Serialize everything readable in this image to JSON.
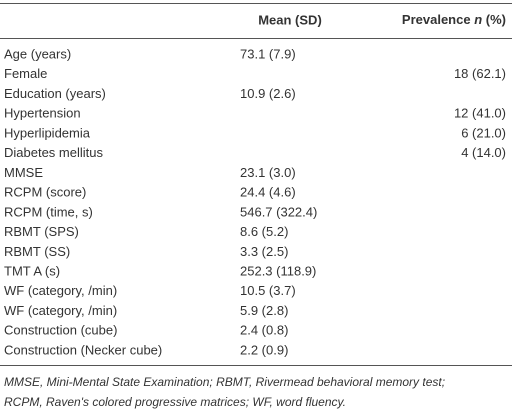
{
  "table": {
    "header": {
      "mean": "Mean (SD)",
      "prevalence": [
        "Prevalence",
        "n",
        "(%)"
      ]
    },
    "rows": [
      {
        "label": "Age (years)",
        "mean": "73.1 (7.9)"
      },
      {
        "label": "Female",
        "prevalence": "18 (62.1)"
      },
      {
        "label": "Education (years)",
        "mean": "10.9 (2.6)"
      },
      {
        "label": "Hypertension",
        "prevalence": "12 (41.0)"
      },
      {
        "label": "Hyperlipidemia",
        "prevalence": "6 (21.0)"
      },
      {
        "label": "Diabetes mellitus",
        "prevalence": "4 (14.0)"
      },
      {
        "label": "MMSE",
        "mean": "23.1 (3.0)"
      },
      {
        "label": "RCPM (score)",
        "mean": "24.4 (4.6)"
      },
      {
        "label": "RCPM (time, s)",
        "mean": "546.7 (322.4)"
      },
      {
        "label": "RBMT (SPS)",
        "mean": "8.6 (5.2)"
      },
      {
        "label": "RBMT (SS)",
        "mean": "3.3 (2.5)"
      },
      {
        "label": "TMT A (s)",
        "mean": "252.3 (118.9)"
      },
      {
        "label": "WF (category, /min)",
        "mean": "10.5 (3.7)"
      },
      {
        "label": "WF (category, /min)",
        "mean": "5.9 (2.8)"
      },
      {
        "label": "Construction (cube)",
        "mean": "2.4 (0.8)"
      },
      {
        "label": "Construction (Necker cube)",
        "mean": "2.2 (0.9)"
      }
    ],
    "footnote": [
      "MMSE, Mini-Mental State Examination; RBMT, Rivermead behavioral memory test;",
      "RCPM, Raven's colored progressive matrices; WF, word fluency."
    ]
  }
}
